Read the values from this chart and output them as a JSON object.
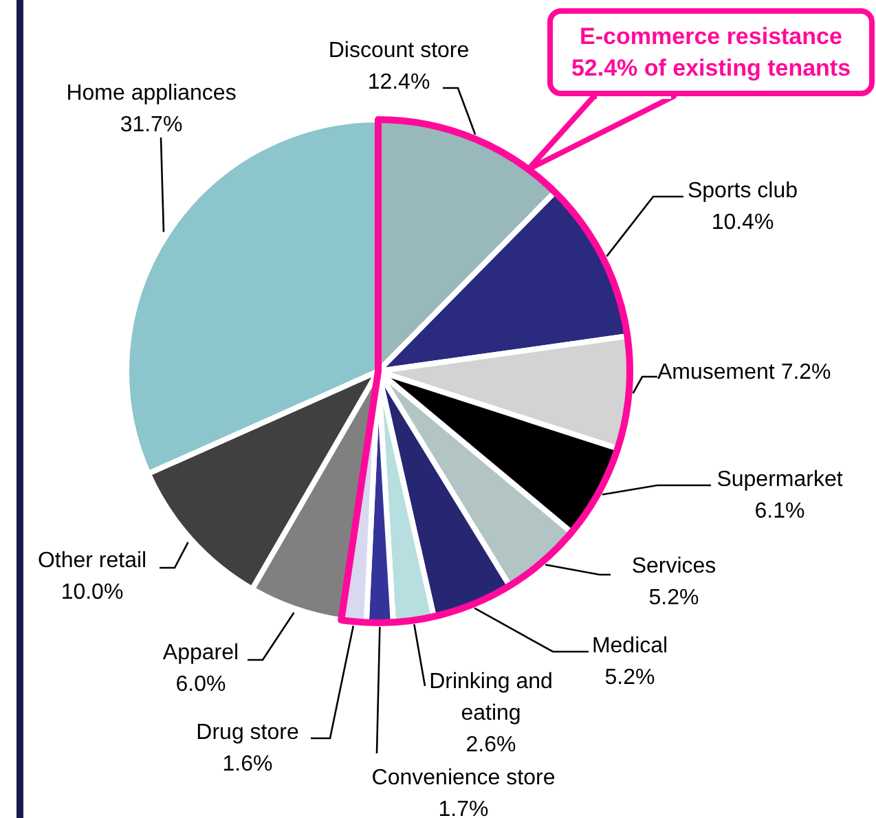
{
  "chart_data": {
    "type": "pie",
    "categories": [
      "Discount store",
      "Sports club",
      "Amusement",
      "Supermarket",
      "Services",
      "Medical",
      "Drinking and eating",
      "Convenience store",
      "Drug store",
      "Apparel",
      "Other retail",
      "Home appliances"
    ],
    "values": [
      12.4,
      10.4,
      7.2,
      6.1,
      5.2,
      5.2,
      2.6,
      1.7,
      1.6,
      6.0,
      10.0,
      31.7
    ],
    "value_labels": [
      "12.4%",
      "10.4%",
      "7.2%",
      "6.1%",
      "5.2%",
      "5.2%",
      "2.6%",
      "1.7%",
      "1.6%",
      "6.0%",
      "10.0%",
      "31.7%"
    ],
    "colors": [
      "#99b8bb",
      "#2a2a7e",
      "#d3d3d3",
      "#000000",
      "#b3c4c4",
      "#262673",
      "#b8dfe0",
      "#333399",
      "#d8d8f0",
      "#808080",
      "#404040",
      "#8cc5cc"
    ],
    "annotations": [
      "E-commerce resistance 52.4% of existing tenants"
    ],
    "legend": false
  }
}
